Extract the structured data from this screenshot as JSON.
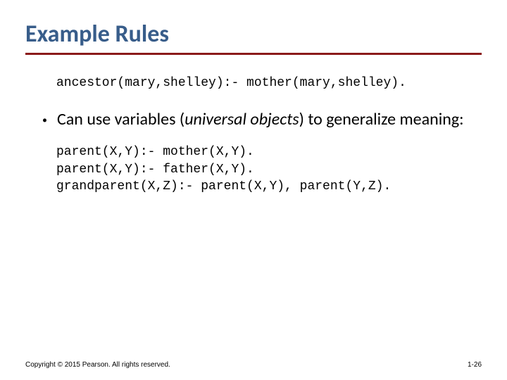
{
  "colors": {
    "title": "#385d8a",
    "rule": "#8b1a1a",
    "body": "#000000",
    "footer": "#000000",
    "background": "#ffffff"
  },
  "typography": {
    "title_fontsize": 34,
    "body_fontsize": 24,
    "code_fontsize": 18,
    "footer_fontsize": 10,
    "title_weight": 600
  },
  "title": "Example Rules",
  "code1": "ancestor(mary,shelley):- mother(mary,shelley).",
  "bullet": {
    "pre": "Can use variables (",
    "italic": "universal objects",
    "post": ") to generalize meaning:"
  },
  "code2_line1": "parent(X,Y):- mother(X,Y).",
  "code2_line2": "parent(X,Y):- father(X,Y).",
  "code2_line3": "grandparent(X,Z):- parent(X,Y), parent(Y,Z).",
  "footer": {
    "copyright": "Copyright © 2015 Pearson. All rights reserved.",
    "page": "1-26"
  }
}
